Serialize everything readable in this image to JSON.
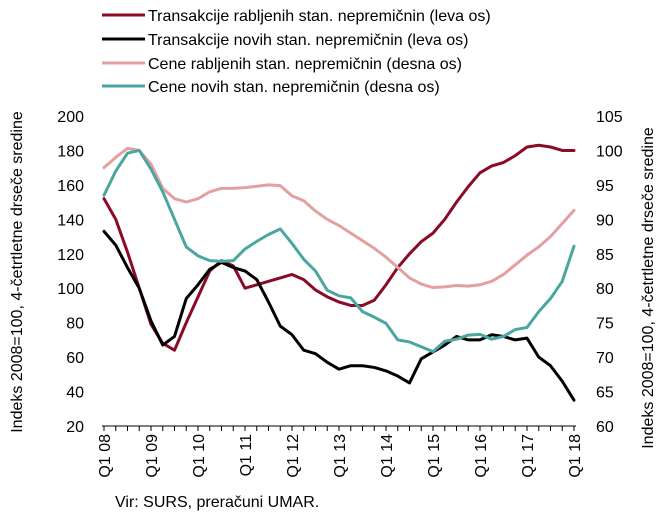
{
  "chart_data": {
    "type": "line",
    "x_tick_labels": [
      "Q1 08",
      "Q1 09",
      "Q1 10",
      "Q1 11",
      "Q1 12",
      "Q1 13",
      "Q1 14",
      "Q1 15",
      "Q1 16",
      "Q1 17",
      "Q1 18"
    ],
    "ylabel_left": "Indeks 2008=100, 4-četrtletne drseče sredine",
    "ylabel_right": "Indeks 2008=100, 4-četrtletne drseče sredine",
    "ylim_left": [
      20,
      200
    ],
    "ylim_right": [
      60,
      105
    ],
    "yticks_left": [
      20,
      40,
      60,
      80,
      100,
      120,
      140,
      160,
      180,
      200
    ],
    "yticks_right": [
      60,
      65,
      70,
      75,
      80,
      85,
      90,
      95,
      100,
      105
    ],
    "legend_position": "top",
    "series": [
      {
        "name": "Transakcije rabljenih stan. nepremičnin (leva os)",
        "axis": "left",
        "color": "#8B0A26",
        "x": [
          "2008Q1",
          "2008Q2",
          "2008Q3",
          "2008Q4",
          "2009Q1",
          "2009Q2",
          "2009Q3",
          "2009Q4",
          "2010Q1",
          "2010Q2",
          "2010Q3",
          "2010Q4",
          "2011Q1",
          "2011Q2",
          "2011Q3",
          "2011Q4",
          "2012Q1",
          "2012Q2",
          "2012Q3",
          "2012Q4",
          "2013Q1",
          "2013Q2",
          "2013Q3",
          "2013Q4",
          "2014Q1",
          "2014Q2",
          "2014Q3",
          "2014Q4",
          "2015Q1",
          "2015Q2",
          "2015Q3",
          "2015Q4",
          "2016Q1",
          "2016Q2",
          "2016Q3",
          "2016Q4",
          "2017Q1",
          "2017Q2",
          "2017Q3",
          "2017Q4",
          "2018Q1"
        ],
        "values": [
          152,
          140,
          121,
          100,
          79,
          68,
          64,
          80,
          95,
          110,
          116,
          113,
          100,
          102,
          104,
          106,
          108,
          105,
          99,
          95,
          92,
          90,
          90,
          93,
          102,
          112,
          120,
          127,
          132,
          140,
          150,
          159,
          167,
          171,
          173,
          177,
          182,
          183,
          182,
          180,
          180
        ]
      },
      {
        "name": "Transakcije novih stan. nepremičnin (leva os)",
        "axis": "left",
        "color": "#000000",
        "x": [
          "2008Q1",
          "2008Q2",
          "2008Q3",
          "2008Q4",
          "2009Q1",
          "2009Q2",
          "2009Q3",
          "2009Q4",
          "2010Q1",
          "2010Q2",
          "2010Q3",
          "2010Q4",
          "2011Q1",
          "2011Q2",
          "2011Q3",
          "2011Q4",
          "2012Q1",
          "2012Q2",
          "2012Q3",
          "2012Q4",
          "2013Q1",
          "2013Q2",
          "2013Q3",
          "2013Q4",
          "2014Q1",
          "2014Q2",
          "2014Q3",
          "2014Q4",
          "2015Q1",
          "2015Q2",
          "2015Q3",
          "2015Q4",
          "2016Q1",
          "2016Q2",
          "2016Q3",
          "2016Q4",
          "2017Q1",
          "2017Q2",
          "2017Q3",
          "2017Q4",
          "2018Q1"
        ],
        "values": [
          133,
          125,
          112,
          100,
          81,
          67,
          72,
          94,
          102,
          111,
          115,
          112,
          110,
          105,
          92,
          78,
          73,
          64,
          62,
          57,
          53,
          55,
          55,
          54,
          52,
          49,
          45,
          59,
          63,
          67,
          72,
          70,
          70,
          73,
          72,
          70,
          71,
          60,
          55,
          46,
          35
        ]
      },
      {
        "name": "Cene rabljenih stan. nepremičnin (desna os)",
        "axis": "right",
        "color": "#E3A0A0",
        "x": [
          "2008Q1",
          "2008Q2",
          "2008Q3",
          "2008Q4",
          "2009Q1",
          "2009Q2",
          "2009Q3",
          "2009Q4",
          "2010Q1",
          "2010Q2",
          "2010Q3",
          "2010Q4",
          "2011Q1",
          "2011Q2",
          "2011Q3",
          "2011Q4",
          "2012Q1",
          "2012Q2",
          "2012Q3",
          "2012Q4",
          "2013Q1",
          "2013Q2",
          "2013Q3",
          "2013Q4",
          "2014Q1",
          "2014Q2",
          "2014Q3",
          "2014Q4",
          "2015Q1",
          "2015Q2",
          "2015Q3",
          "2015Q4",
          "2016Q1",
          "2016Q2",
          "2016Q3",
          "2016Q4",
          "2017Q1",
          "2017Q2",
          "2017Q3",
          "2017Q4",
          "2018Q1"
        ],
        "values": [
          97.5,
          99,
          100.3,
          100,
          98,
          94.5,
          93,
          92.5,
          93,
          94,
          94.5,
          94.5,
          94.6,
          94.8,
          95,
          94.9,
          93.4,
          92.7,
          91.2,
          90,
          89.1,
          88,
          86.9,
          85.8,
          84.5,
          83,
          81.5,
          80.6,
          80.1,
          80.2,
          80.4,
          80.3,
          80.5,
          81,
          82,
          83.4,
          84.8,
          86,
          87.5,
          89.4,
          91.3
        ]
      },
      {
        "name": "Cene novih stan. nepremičnin (desna os)",
        "axis": "right",
        "color": "#4BA5A0",
        "x": [
          "2008Q1",
          "2008Q2",
          "2008Q3",
          "2008Q4",
          "2009Q1",
          "2009Q2",
          "2009Q3",
          "2009Q4",
          "2010Q1",
          "2010Q2",
          "2010Q3",
          "2010Q4",
          "2011Q1",
          "2011Q2",
          "2011Q3",
          "2011Q4",
          "2012Q1",
          "2012Q2",
          "2012Q3",
          "2012Q4",
          "2013Q1",
          "2013Q2",
          "2013Q3",
          "2013Q4",
          "2014Q1",
          "2014Q2",
          "2014Q3",
          "2014Q4",
          "2015Q1",
          "2015Q2",
          "2015Q3",
          "2015Q4",
          "2016Q1",
          "2016Q2",
          "2016Q3",
          "2016Q4",
          "2017Q1",
          "2017Q2",
          "2017Q3",
          "2017Q4",
          "2018Q1"
        ],
        "values": [
          93.5,
          97,
          99.6,
          100,
          97.3,
          94,
          90,
          86,
          84.7,
          84,
          83.9,
          84,
          85.7,
          86.8,
          87.8,
          88.6,
          86.5,
          84.2,
          82.5,
          79.7,
          78.9,
          78.6,
          76.6,
          75.8,
          74.9,
          72.5,
          72.2,
          71.5,
          70.8,
          72.3,
          72.6,
          73.2,
          73.3,
          72.6,
          73,
          74,
          74.3,
          76.6,
          78.5,
          81,
          86.1
        ]
      }
    ]
  },
  "source_note": "Vir: SURS, preračuni UMAR."
}
